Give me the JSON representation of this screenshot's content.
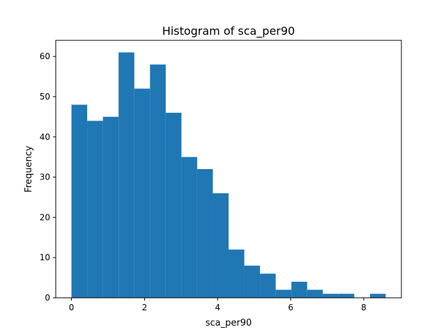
{
  "chart_data": {
    "type": "bar",
    "title": "Histogram of sca_per90",
    "xlabel": "sca_per90",
    "ylabel": "Frequency",
    "xlim": [
      -0.43,
      9.03
    ],
    "ylim": [
      0,
      64
    ],
    "xticks": [
      0,
      2,
      4,
      6,
      8
    ],
    "yticks": [
      0,
      10,
      20,
      30,
      40,
      50,
      60
    ],
    "bin_edges": [
      0.0,
      0.43,
      0.86,
      1.29,
      1.72,
      2.15,
      2.58,
      3.01,
      3.44,
      3.87,
      4.3,
      4.73,
      5.16,
      5.59,
      6.02,
      6.45,
      6.88,
      7.31,
      7.74,
      8.17,
      8.6
    ],
    "values": [
      48,
      44,
      45,
      61,
      52,
      58,
      46,
      35,
      32,
      26,
      12,
      8,
      6,
      2,
      4,
      2,
      1,
      1,
      0,
      1
    ],
    "bar_color": "#1f77b4",
    "grid": false,
    "legend": "none"
  }
}
